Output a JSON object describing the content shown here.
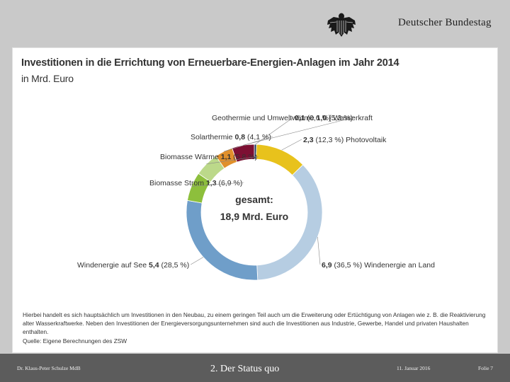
{
  "header": {
    "organization": "Deutscher Bundestag",
    "logo_icon": "bundestag-eagle-icon"
  },
  "chart_data": {
    "type": "pie",
    "title": "Investitionen in die Errichtung von Erneuerbare-Energien-Anlagen im Jahr 2014",
    "unit": "in Mrd. Euro",
    "center_label": "gesamt:",
    "center_value": "18,9 Mrd. Euro",
    "total": 18.9,
    "slices": [
      {
        "name": "Wasserkraft",
        "value": 0.1,
        "value_label": "0,1",
        "share_label": "(0,6 %)",
        "color": "#1f3b5c"
      },
      {
        "name": "Photovoltaik",
        "value": 2.3,
        "value_label": "2,3",
        "share_label": "(12,3 %)",
        "color": "#e8c21c"
      },
      {
        "name": "Windenergie an Land",
        "value": 6.9,
        "value_label": "6,9",
        "share_label": "(36,5 %)",
        "color": "#b6cde2"
      },
      {
        "name": "Windenergie auf See",
        "value": 5.4,
        "value_label": "5,4",
        "share_label": "(28,5 %)",
        "color": "#6f9ec9"
      },
      {
        "name": "Biomasse Strom",
        "value": 1.3,
        "value_label": "1,3",
        "share_label": "(6,9 %)",
        "color": "#8dbf3c"
      },
      {
        "name": "Biomasse Wärme",
        "value": 1.1,
        "value_label": "1,1",
        "share_label": "(5,8 %)",
        "color": "#bcd98a"
      },
      {
        "name": "Solarthermie",
        "value": 0.8,
        "value_label": "0,8",
        "share_label": "(4,1 %)",
        "color": "#e0902c"
      },
      {
        "name": "Geothermie und Umweltwärme",
        "value": 1.0,
        "value_label": "1,0",
        "share_label": "(5,3 %)",
        "color": "#7d1033"
      }
    ],
    "note": "Hierbei handelt es sich hauptsächlich um Investitionen in den Neubau, zu einem geringen Teil auch um die Erweiterung oder Ertüchtigung von Anlagen wie z. B. die Reaktivierung alter Wasserkraftwerke. Neben den Investitionen der Energieversorgungsunternehmen sind auch die Investitionen aus Industrie, Gewerbe, Handel und privaten Haushalten enthalten.",
    "source": "Quelle: Eigene Berechnungen des ZSW"
  },
  "footer": {
    "author": "Dr. Klaus-Peter Schulze MdB",
    "section": "2. Der Status quo",
    "date": "11. Januar 2016",
    "slide": "Folie 7"
  }
}
